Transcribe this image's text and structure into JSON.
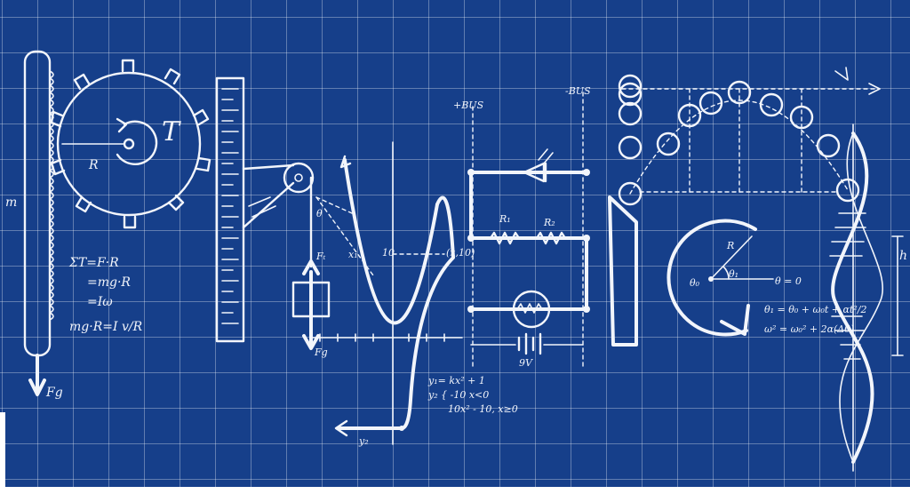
{
  "formulas": {
    "torque_sum": "ΣT=F·R",
    "torque_mg": "=mg·R",
    "torque_iw": "=Iω",
    "torque_final": "mg·R=I v/R",
    "y1": "y₁= kx² + 1",
    "y2a": "y₂ { -10  x<0",
    "y2b": "10x² - 10,  x≥0",
    "theta1": "θ₁ = θ₀ + ω₀t + αt²/2",
    "theta2": "ω² = ω₀² + 2α(Δθ)"
  },
  "labels": {
    "torque": "T",
    "radius_gear": "R",
    "m_left": "m",
    "fg_left": "Fg",
    "ft": "Fₜ",
    "fg_mid": "Fg",
    "theta_pulley": "θ",
    "bus_plus": "+BUS",
    "bus_minus": "-BUS",
    "r1": "R₁",
    "r2": "R₂",
    "battery": "9V",
    "point": "(x,10)",
    "ten": "10",
    "x1": "x₁",
    "y2_label": "y₂",
    "radius_circle": "R",
    "theta_0": "θ₀",
    "theta_1": "θ₁",
    "theta_zero": "θ = 0",
    "h_right": "h"
  },
  "colors": {
    "blueprint": "#163f8a",
    "grid": "#ffffff",
    "ink": "#f2f5fb"
  }
}
